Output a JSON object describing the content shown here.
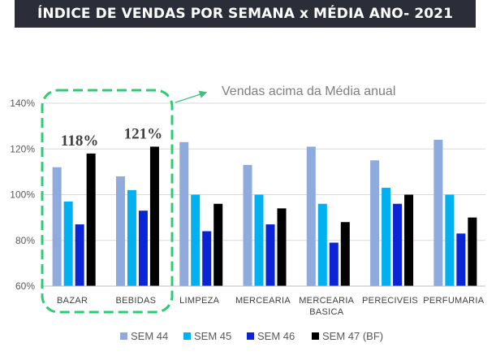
{
  "header": {
    "title": "ÍNDICE DE VENDAS POR SEMANA x MÉDIA ANO- 2021"
  },
  "chart_data": {
    "type": "bar",
    "categories": [
      "BAZAR",
      "BEBIDAS",
      "LIMPEZA",
      "MERCEARIA",
      "MERCEARIA BASICA",
      "PERECIVEIS",
      "PERFUMARIA"
    ],
    "series": [
      {
        "name": "SEM 44",
        "color": "#8faadc",
        "values": [
          112,
          108,
          123,
          113,
          121,
          115,
          124
        ]
      },
      {
        "name": "SEM 45",
        "color": "#00b0f0",
        "values": [
          97,
          102,
          100,
          100,
          96,
          103,
          100
        ]
      },
      {
        "name": "SEM 46",
        "color": "#0a24d6",
        "values": [
          87,
          93,
          84,
          87,
          79,
          96,
          83
        ]
      },
      {
        "name": "SEM 47 (BF)",
        "color": "#000000",
        "values": [
          118,
          121,
          96,
          94,
          88,
          100,
          90
        ]
      }
    ],
    "yticks": [
      "60%",
      "80%",
      "100%",
      "120%",
      "140%"
    ],
    "ylim": [
      60,
      140
    ],
    "grid": true,
    "legend": "bottom",
    "data_labels": [
      {
        "category": "BAZAR",
        "series": "SEM 47 (BF)",
        "text": "118%"
      },
      {
        "category": "BEBIDAS",
        "series": "SEM 47 (BF)",
        "text": "121%"
      }
    ],
    "annotation": {
      "text": "Vendas acima da Média anual",
      "color": "#2ecc71"
    }
  }
}
